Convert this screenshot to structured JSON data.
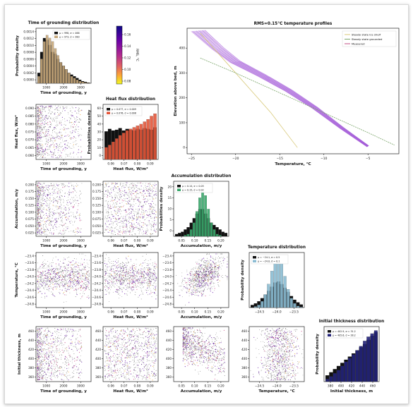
{
  "figure": {
    "colorbar": {
      "label": "RMS, °C",
      "ticks": [
        "0.16",
        "0.14",
        "0.12",
        "0.10",
        "0.08"
      ]
    },
    "labels": {
      "time": "Time of grounding, y",
      "heat": "Heat flux, W/m²",
      "acc": "Accumulation, m/y",
      "temp": "Temperature, °C",
      "thick": "Initial thickness, m"
    },
    "ylabels": {
      "pd": "Probability density",
      "pd2": "Probabilities density",
      "heat": "Heat flux, W/m²",
      "acc": "Accumulation, m/y",
      "temp": "Temperature, °C",
      "thick": "Initial thickness, m"
    },
    "ticks": {
      "time_x": [
        "1000",
        "2000",
        "3000"
      ],
      "heat_x": [
        "0.06",
        "0.07",
        "0.08",
        "0.09"
      ],
      "acc_x": [
        "0.05",
        "0.10",
        "0.15",
        "0.20"
      ],
      "temp_x": [
        "−24.5",
        "−24.0",
        "−23.5"
      ],
      "thick_x": [
        "380",
        "400",
        "420",
        "440",
        "460"
      ],
      "heat_y": [
        "0.090",
        "0.085",
        "0.080",
        "0.075",
        "0.070",
        "0.065",
        "0.060"
      ],
      "acc_y": [
        "0.200",
        "0.175",
        "0.150",
        "0.125",
        "0.100",
        "0.075",
        "0.050",
        "0.025"
      ],
      "temp_y": [
        "−23.4",
        "−23.6",
        "−23.8",
        "−24.0",
        "−24.2",
        "−24.4",
        "−24.6",
        "−24.8"
      ],
      "thick_y": [
        "460",
        "440",
        "420",
        "400",
        "380",
        "360"
      ]
    }
  },
  "chart_data": [
    {
      "type": "bar",
      "title": "Time of grounding distribution",
      "xlabel": "Time of grounding, y",
      "ylabel": "Probability density",
      "yticks": [
        "0.0014",
        "0.0012",
        "0.0010",
        "0.0008",
        "0.0006",
        "0.0004",
        "0.0002",
        "0.0000"
      ],
      "xticks": [
        "1000",
        "2000",
        "3000"
      ],
      "ylim": [
        0,
        0.0015
      ],
      "legend": [
        "μ = 998, σ = 466",
        "μ = 973, σ = 380"
      ],
      "x": [
        500,
        600,
        700,
        800,
        900,
        1000,
        1100,
        1200,
        1300,
        1400,
        1500,
        1600,
        1700,
        1800,
        1900,
        2000,
        2100,
        2200,
        2300
      ],
      "series": [
        {
          "values": [
            0.0003,
            0.0009,
            0.0013,
            0.00125,
            0.0011,
            0.0009,
            0.00085,
            0.0007,
            0.0006,
            0.0005,
            0.0004,
            0.0003,
            0.00025,
            0.0002,
            0.00015,
            0.0001,
            6e-05,
            4e-05,
            2e-05
          ]
        },
        {
          "values": [
            0.0002,
            0.0007,
            0.0012,
            0.00138,
            0.0013,
            0.0012,
            0.001,
            0.0008,
            0.0006,
            0.0005,
            0.0004,
            0.0003,
            0.0002,
            0.00015,
            0.0001,
            6e-05,
            4e-05,
            2e-05,
            1e-05
          ]
        }
      ]
    },
    {
      "type": "bar",
      "title": "Heat flux distribution",
      "xlabel": "Heat flux, W/m²",
      "ylabel": "Probabilities density",
      "yticks": [
        "60",
        "50",
        "40",
        "30",
        "20",
        "10",
        "0"
      ],
      "xticks": [
        "0.06",
        "0.07",
        "0.08",
        "0.09"
      ],
      "ylim": [
        0,
        65
      ],
      "legend": [
        "μ = 0.077, σ = 0.009",
        "μ = 0.076, σ = 0.008"
      ],
      "series": [
        {
          "values": [
            35,
            38,
            36,
            37,
            39,
            36,
            38,
            37,
            36,
            38,
            37,
            39,
            38,
            37,
            40
          ]
        },
        {
          "values": [
            15,
            18,
            22,
            26,
            30,
            33,
            36,
            38,
            40,
            42,
            44,
            47,
            50,
            54,
            57
          ]
        }
      ]
    },
    {
      "type": "line",
      "title": "RMS=0.15°C temperature profiles",
      "xlabel": "Temperature, °C",
      "ylabel": "Elevation above bed, m",
      "xticks": [
        "−25",
        "−20",
        "−15",
        "−10",
        "−5"
      ],
      "yticks": [
        "400",
        "300",
        "200",
        "100",
        "0"
      ],
      "xlim": [
        -25.5,
        -1.5
      ],
      "ylim": [
        -25,
        480
      ],
      "legend": [
        "Steady state ice shelf",
        "Steady state grounded",
        "Measured"
      ],
      "series": [
        {
          "name": "Steady state ice shelf",
          "x": [
            -24,
            -20,
            -16,
            -13
          ],
          "y": [
            460,
            300,
            140,
            0
          ]
        },
        {
          "name": "Steady state grounded",
          "x": [
            -24,
            -20,
            -15,
            -10,
            -5,
            -2
          ],
          "y": [
            360,
            300,
            220,
            140,
            60,
            10
          ]
        },
        {
          "name": "Measured",
          "x": [
            -24.2,
            -22,
            -20,
            -17,
            -14,
            -11,
            -8,
            -5
          ],
          "y": [
            470,
            400,
            345,
            290,
            230,
            160,
            80,
            5
          ]
        }
      ]
    },
    {
      "type": "bar",
      "title": "Accumulation distribution",
      "xlabel": "Accumulation, m/y",
      "ylabel": "Probabilities density",
      "yticks": [
        "20",
        "15",
        "10",
        "5",
        "0"
      ],
      "xticks": [
        "0.05",
        "0.10",
        "0.15",
        "0.20"
      ],
      "ylim": [
        0,
        23
      ],
      "legend": [
        "μ = 0.14, σ = 0.05",
        "μ = 0.15, σ = 0.02"
      ],
      "series": [
        {
          "values": [
            1,
            1.5,
            2,
            3,
            4,
            6,
            8,
            10,
            12,
            12,
            10,
            8,
            6,
            5,
            4,
            3,
            2,
            1.5
          ]
        },
        {
          "values": [
            0,
            0,
            0,
            0.5,
            1,
            3,
            6,
            11,
            17,
            21,
            18,
            12,
            6,
            3,
            1,
            0.5,
            0,
            0
          ]
        }
      ]
    },
    {
      "type": "bar",
      "title": "Temperature distribution",
      "xlabel": "",
      "ylabel": "Probability density",
      "yticks": [],
      "xticks": [
        "−24.5",
        "−24.0",
        "−23.5"
      ],
      "ylim": [
        0,
        1
      ],
      "legend": [
        "μ = −24.1, σ = 0.5",
        "μ = −24.0, σ = 0.1"
      ],
      "series": [
        {
          "values": [
            0.05,
            0.08,
            0.12,
            0.18,
            0.25,
            0.32,
            0.4,
            0.48,
            0.5,
            0.45,
            0.38,
            0.3,
            0.22,
            0.15,
            0.1,
            0.06
          ]
        },
        {
          "values": [
            0,
            0.02,
            0.05,
            0.12,
            0.25,
            0.45,
            0.7,
            0.9,
            1.0,
            0.85,
            0.6,
            0.35,
            0.18,
            0.08,
            0.03,
            0.01
          ]
        }
      ]
    },
    {
      "type": "bar",
      "title": "Initial thickness distribution",
      "xlabel": "Initial thickness, m",
      "ylabel": "Probability density",
      "yticks": [],
      "xticks": [
        "380",
        "400",
        "420",
        "440",
        "460"
      ],
      "ylim": [
        0,
        1
      ],
      "legend": [
        "μ = 402.9, σ = 31.2",
        "μ = 405.6, σ = 28.2"
      ],
      "series": [
        {
          "values": [
            0.12,
            0.18,
            0.24,
            0.3,
            0.36,
            0.42,
            0.48,
            0.54,
            0.6,
            0.66,
            0.72,
            0.8,
            0.88,
            0.95
          ]
        },
        {
          "values": [
            0.05,
            0.1,
            0.16,
            0.22,
            0.3,
            0.38,
            0.45,
            0.52,
            0.6,
            0.68,
            0.78,
            0.86,
            0.92,
            0.98
          ]
        }
      ]
    }
  ]
}
